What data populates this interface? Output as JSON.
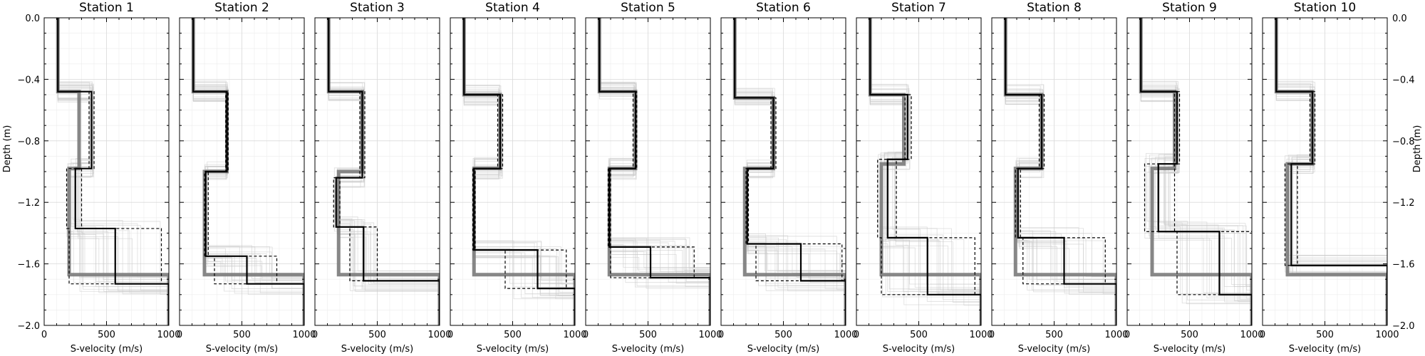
{
  "chart_data": {
    "type": "line",
    "xlabel": "S-velocity (m/s)",
    "ylabel": "Depth (m)",
    "xlim": [
      0,
      1000
    ],
    "ylim": [
      -2.0,
      0.0
    ],
    "xticks": [
      0,
      500,
      1000
    ],
    "xtick_labels": [
      "0",
      "500",
      "1000"
    ],
    "yticks": [
      0.0,
      -0.4,
      -0.8,
      -1.2,
      -1.6,
      -2.0
    ],
    "ytick_labels": [
      "0.0",
      "−0.4",
      "−0.8",
      "−1.2",
      "−1.6",
      "−2.0"
    ],
    "grid": true,
    "style_colors": {
      "ensemble": "#c8c8c8",
      "reference": "#7a7a7a",
      "inversion": "#000000",
      "bounds": "#000000"
    },
    "panels": [
      {
        "title": "Station 1",
        "reference_profile": {
          "velocities": [
            110,
            280,
            200,
            1000
          ],
          "interfaces": [
            -0.48,
            -0.98,
            -1.67
          ]
        },
        "inverted_profile": {
          "velocities": [
            110,
            380,
            250,
            570,
            1000
          ],
          "interfaces": [
            -0.48,
            -0.98,
            -1.37,
            -1.73
          ]
        },
        "bounds_lower": {
          "velocities": [
            110,
            360,
            180,
            200,
            1000
          ],
          "interfaces": [
            -0.48,
            -0.98,
            -1.37,
            -1.73
          ]
        },
        "bounds_upper": {
          "velocities": [
            110,
            400,
            300,
            940,
            1000
          ],
          "interfaces": [
            -0.48,
            -0.98,
            -1.37,
            -1.73
          ]
        }
      },
      {
        "title": "Station 2",
        "reference_profile": {
          "velocities": [
            110,
            380,
            200,
            1000
          ],
          "interfaces": [
            -0.48,
            -1.0,
            -1.67
          ]
        },
        "inverted_profile": {
          "velocities": [
            110,
            380,
            210,
            540,
            1000
          ],
          "interfaces": [
            -0.48,
            -1.0,
            -1.55,
            -1.73
          ]
        },
        "bounds_lower": {
          "velocities": [
            110,
            370,
            200,
            280,
            1000
          ],
          "interfaces": [
            -0.48,
            -1.0,
            -1.55,
            -1.73
          ]
        },
        "bounds_upper": {
          "velocities": [
            110,
            390,
            230,
            780,
            1000
          ],
          "interfaces": [
            -0.48,
            -1.0,
            -1.55,
            -1.73
          ]
        }
      },
      {
        "title": "Station 3",
        "reference_profile": {
          "velocities": [
            110,
            380,
            190,
            1000
          ],
          "interfaces": [
            -0.48,
            -1.0,
            -1.67
          ]
        },
        "inverted_profile": {
          "velocities": [
            110,
            380,
            170,
            390,
            1000
          ],
          "interfaces": [
            -0.48,
            -1.04,
            -1.36,
            -1.71
          ]
        },
        "bounds_lower": {
          "velocities": [
            110,
            360,
            150,
            280,
            1000
          ],
          "interfaces": [
            -0.48,
            -1.04,
            -1.36,
            -1.71
          ]
        },
        "bounds_upper": {
          "velocities": [
            110,
            400,
            200,
            500,
            1000
          ],
          "interfaces": [
            -0.48,
            -1.04,
            -1.36,
            -1.71
          ]
        }
      },
      {
        "title": "Station 4",
        "reference_profile": {
          "velocities": [
            110,
            400,
            190,
            1000
          ],
          "interfaces": [
            -0.5,
            -0.98,
            -1.67
          ]
        },
        "inverted_profile": {
          "velocities": [
            110,
            400,
            190,
            700,
            1000
          ],
          "interfaces": [
            -0.5,
            -0.98,
            -1.51,
            -1.76
          ]
        },
        "bounds_lower": {
          "velocities": [
            110,
            380,
            180,
            440,
            1000
          ],
          "interfaces": [
            -0.5,
            -0.98,
            -1.51,
            -1.76
          ]
        },
        "bounds_upper": {
          "velocities": [
            110,
            420,
            200,
            930,
            1000
          ],
          "interfaces": [
            -0.5,
            -0.98,
            -1.51,
            -1.76
          ]
        }
      },
      {
        "title": "Station 5",
        "reference_profile": {
          "velocities": [
            110,
            400,
            190,
            1000
          ],
          "interfaces": [
            -0.48,
            -0.98,
            -1.67
          ]
        },
        "inverted_profile": {
          "velocities": [
            110,
            400,
            190,
            520,
            1000
          ],
          "interfaces": [
            -0.48,
            -0.98,
            -1.49,
            -1.69
          ]
        },
        "bounds_lower": {
          "velocities": [
            110,
            380,
            180,
            200,
            1000
          ],
          "interfaces": [
            -0.48,
            -0.98,
            -1.49,
            -1.69
          ]
        },
        "bounds_upper": {
          "velocities": [
            110,
            410,
            200,
            870,
            1000
          ],
          "interfaces": [
            -0.48,
            -0.98,
            -1.49,
            -1.69
          ]
        }
      },
      {
        "title": "Station 6",
        "reference_profile": {
          "velocities": [
            110,
            420,
            190,
            1000
          ],
          "interfaces": [
            -0.52,
            -0.98,
            -1.67
          ]
        },
        "inverted_profile": {
          "velocities": [
            110,
            420,
            210,
            640,
            1000
          ],
          "interfaces": [
            -0.52,
            -0.98,
            -1.47,
            -1.71
          ]
        },
        "bounds_lower": {
          "velocities": [
            110,
            400,
            200,
            280,
            1000
          ],
          "interfaces": [
            -0.52,
            -0.98,
            -1.47,
            -1.71
          ]
        },
        "bounds_upper": {
          "velocities": [
            110,
            440,
            220,
            970,
            1000
          ],
          "interfaces": [
            -0.52,
            -0.98,
            -1.47,
            -1.71
          ]
        }
      },
      {
        "title": "Station 7",
        "reference_profile": {
          "velocities": [
            110,
            380,
            200,
            1000
          ],
          "interfaces": [
            -0.5,
            -0.95,
            -1.67
          ]
        },
        "inverted_profile": {
          "velocities": [
            110,
            410,
            250,
            570,
            1000
          ],
          "interfaces": [
            -0.5,
            -0.92,
            -1.43,
            -1.8
          ]
        },
        "bounds_lower": {
          "velocities": [
            110,
            390,
            170,
            200,
            1000
          ],
          "interfaces": [
            -0.5,
            -0.92,
            -1.43,
            -1.8
          ]
        },
        "bounds_upper": {
          "velocities": [
            110,
            440,
            320,
            950,
            1000
          ],
          "interfaces": [
            -0.5,
            -0.92,
            -1.43,
            -1.8
          ]
        }
      },
      {
        "title": "Station 8",
        "reference_profile": {
          "velocities": [
            110,
            400,
            190,
            1000
          ],
          "interfaces": [
            -0.5,
            -0.98,
            -1.67
          ]
        },
        "inverted_profile": {
          "velocities": [
            110,
            400,
            210,
            580,
            1000
          ],
          "interfaces": [
            -0.5,
            -0.98,
            -1.43,
            -1.73
          ]
        },
        "bounds_lower": {
          "velocities": [
            110,
            380,
            190,
            250,
            1000
          ],
          "interfaces": [
            -0.5,
            -0.98,
            -1.43,
            -1.73
          ]
        },
        "bounds_upper": {
          "velocities": [
            110,
            420,
            230,
            910,
            1000
          ],
          "interfaces": [
            -0.5,
            -0.98,
            -1.43,
            -1.73
          ]
        }
      },
      {
        "title": "Station 9",
        "reference_profile": {
          "velocities": [
            110,
            380,
            200,
            1000
          ],
          "interfaces": [
            -0.48,
            -0.98,
            -1.67
          ]
        },
        "inverted_profile": {
          "velocities": [
            110,
            400,
            250,
            740,
            1000
          ],
          "interfaces": [
            -0.48,
            -0.95,
            -1.39,
            -1.8
          ]
        },
        "bounds_lower": {
          "velocities": [
            110,
            380,
            140,
            400,
            1000
          ],
          "interfaces": [
            -0.48,
            -0.95,
            -1.39,
            -1.8
          ]
        },
        "bounds_upper": {
          "velocities": [
            110,
            420,
            380,
            1040,
            1000
          ],
          "interfaces": [
            -0.48,
            -0.95,
            -1.39,
            -1.8
          ]
        }
      },
      {
        "title": "Station 10",
        "reference_profile": {
          "velocities": [
            110,
            400,
            200,
            1000
          ],
          "interfaces": [
            -0.48,
            -0.95,
            -1.67
          ]
        },
        "inverted_profile": {
          "velocities": [
            110,
            400,
            230,
            1000
          ],
          "interfaces": [
            -0.48,
            -0.95,
            -1.61
          ]
        },
        "bounds_lower": {
          "velocities": [
            110,
            380,
            180,
            1000
          ],
          "interfaces": [
            -0.48,
            -0.95,
            -1.61
          ]
        },
        "bounds_upper": {
          "velocities": [
            110,
            420,
            280,
            1000
          ],
          "interfaces": [
            -0.48,
            -0.95,
            -1.61
          ]
        }
      }
    ]
  }
}
